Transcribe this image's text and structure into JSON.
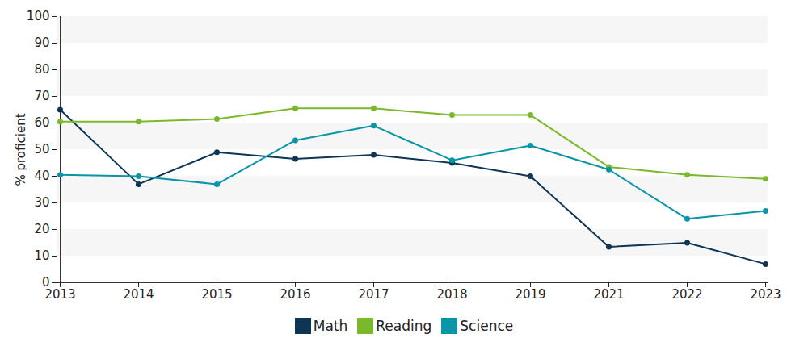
{
  "chart_data": {
    "type": "line",
    "y_label": "% proficient",
    "categories": [
      "2013",
      "2014",
      "2015",
      "2016",
      "2017",
      "2018",
      "2019",
      "2021",
      "2022",
      "2023"
    ],
    "series": [
      {
        "name": "Math",
        "color": "#0d3556",
        "values": [
          65,
          37,
          49,
          46.5,
          48,
          45,
          40,
          13.5,
          15,
          7
        ]
      },
      {
        "name": "Reading",
        "color": "#7ab929",
        "values": [
          60.5,
          60.5,
          61.5,
          65.5,
          65.5,
          63,
          63,
          43.5,
          40.5,
          39
        ]
      },
      {
        "name": "Science",
        "color": "#0895a8",
        "values": [
          40.5,
          40,
          37,
          53.5,
          59,
          46,
          51.5,
          42.5,
          24,
          27
        ]
      }
    ],
    "ylim": [
      0,
      100
    ],
    "yticks": [
      0,
      10,
      20,
      30,
      40,
      50,
      60,
      70,
      80,
      90,
      100
    ],
    "grid": true,
    "legend": "bottom",
    "marker": "circle"
  }
}
